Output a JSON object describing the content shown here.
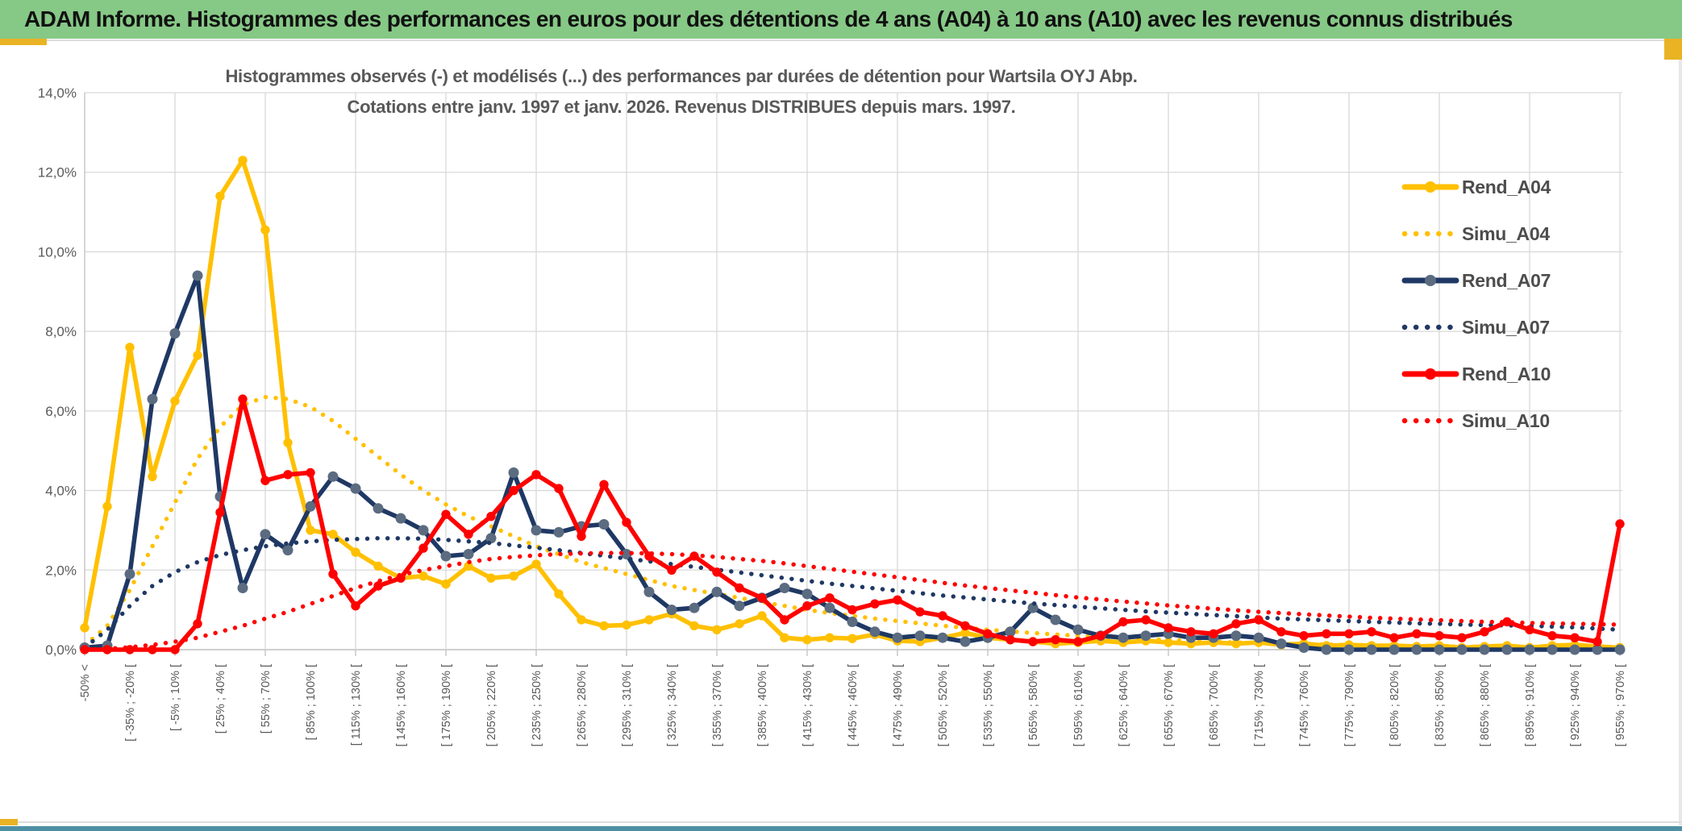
{
  "window": {
    "title": "ADAM Informe. Histogrammes des performances en euros pour des détentions de 4 ans (A04) à 10 ans (A10) avec les revenus connus distribués",
    "colors": {
      "titlebar_green": "#86C886",
      "accent_gold": "#E9B324",
      "accent_teal": "#4F8FA4",
      "rule_gray": "#DCDCDC"
    }
  },
  "chart": {
    "y_axis": {
      "labels": [
        "14,0%",
        "12,0%",
        "10,0%",
        "8,0%",
        "6,0%",
        "4,0%",
        "2,0%",
        "0,0%"
      ],
      "values": [
        14,
        12,
        10,
        8,
        6,
        4,
        2,
        0
      ]
    },
    "colors": {
      "grid": "#D9D9D9",
      "axis": "#BFBFBF",
      "axis_text": "#595959",
      "title_text": "#595959",
      "gold": "#FFC000",
      "navy": "#1F3864",
      "navy_marker": "#5B6B80",
      "red": "#FF0000"
    },
    "legend": [
      "Rend_A04",
      "Simu_A04",
      "Rend_A07",
      "Simu_A07",
      "Rend_A10",
      "Simu_A10"
    ]
  },
  "chart_data": {
    "type": "line",
    "title": "Histogrammes observés (-) et modélisés (...) des performances par durées de détention pour Wartsila OYJ Abp.",
    "subtitle": "Cotations entre janv. 1997 et janv. 2026. Revenus DISTRIBUES depuis mars. 1997.",
    "ylim": [
      0,
      14
    ],
    "y_tick_step": 2,
    "y_tick_format": "percent_fr",
    "grid": true,
    "legend_position": "right",
    "x_bin_width_pct": 15,
    "x_label_every_n_bins": 2,
    "x_labels": [
      "-50% <",
      "[ -35% ; -20% [",
      "[ -5% ; 10% [",
      "[ 25% ; 40% [",
      "[ 55% ; 70% [",
      "[ 85% ; 100% [",
      "[ 115% ; 130% [",
      "[ 145% ; 160% [",
      "[ 175% ; 190% [",
      "[ 205% ; 220% [",
      "[ 235% ; 250% [",
      "[ 265% ; 280% [",
      "[ 295% ; 310% [",
      "[ 325% ; 340% [",
      "[ 355% ; 370% [",
      "[ 385% ; 400% [",
      "[ 415% ; 430% [",
      "[ 445% ; 460% [",
      "[ 475% ; 490% [",
      "[ 505% ; 520% [",
      "[ 535% ; 550% [",
      "[ 565% ; 580% [",
      "[ 595% ; 610% [",
      "[ 625% ; 640% [",
      "[ 655% ; 670% [",
      "[ 685% ; 700% [",
      "[ 715% ; 730% [",
      "[ 745% ; 760% [",
      "[ 775% ; 790% [",
      "[ 805% ; 820% [",
      "[ 835% ; 850% [",
      "[ 865% ; 880% [",
      "[ 895% ; 910% [",
      "[ 925% ; 940% [",
      "[ 955% ; 970% ["
    ],
    "series": [
      {
        "name": "Rend_A04",
        "style": "solid",
        "color": "#FFC000",
        "marker_color": "#FFC000",
        "values": [
          0.55,
          3.6,
          7.6,
          4.35,
          6.25,
          7.4,
          11.4,
          12.3,
          10.55,
          5.2,
          3.0,
          2.9,
          2.45,
          2.1,
          1.8,
          1.85,
          1.65,
          2.1,
          1.8,
          1.85,
          2.15,
          1.4,
          0.75,
          0.6,
          0.62,
          0.75,
          0.9,
          0.6,
          0.5,
          0.65,
          0.85,
          0.3,
          0.25,
          0.3,
          0.28,
          0.38,
          0.22,
          0.2,
          0.3,
          0.42,
          0.3,
          0.25,
          0.2,
          0.15,
          0.18,
          0.22,
          0.18,
          0.22,
          0.18,
          0.15,
          0.18,
          0.15,
          0.18,
          0.12,
          0.15,
          0.1,
          0.12,
          0.1,
          0.1,
          0.08,
          0.1,
          0.05,
          0.08,
          0.1,
          0.05,
          0.1,
          0.12,
          0.08,
          0.05
        ]
      },
      {
        "name": "Simu_A04",
        "style": "dotted",
        "color": "#FFC000",
        "values": [
          0.1,
          0.6,
          1.5,
          2.6,
          3.7,
          4.8,
          5.6,
          6.15,
          6.35,
          6.3,
          6.1,
          5.75,
          5.3,
          4.85,
          4.4,
          4.0,
          3.65,
          3.35,
          3.1,
          2.85,
          2.6,
          2.4,
          2.2,
          2.05,
          1.9,
          1.75,
          1.6,
          1.5,
          1.4,
          1.3,
          1.2,
          1.1,
          1.0,
          0.92,
          0.85,
          0.78,
          0.72,
          0.66,
          0.6,
          0.55,
          0.5,
          0.46,
          0.42,
          0.38,
          0.35,
          0.32,
          0.29,
          0.27,
          0.24,
          0.22,
          0.2,
          0.18,
          0.17,
          0.15,
          0.14,
          0.13,
          0.12,
          0.11,
          0.1,
          0.09,
          0.08,
          0.08,
          0.07,
          0.07,
          0.06,
          0.06,
          0.05,
          0.05,
          0.05
        ]
      },
      {
        "name": "Rend_A07",
        "style": "solid",
        "color": "#1F3864",
        "marker_color": "#5B6B80",
        "values": [
          0.05,
          0.1,
          1.9,
          6.3,
          7.95,
          9.4,
          3.85,
          1.55,
          2.9,
          2.5,
          3.6,
          4.35,
          4.05,
          3.55,
          3.3,
          3.0,
          2.35,
          2.4,
          2.8,
          4.45,
          3.0,
          2.95,
          3.1,
          3.15,
          2.4,
          1.45,
          1.0,
          1.05,
          1.45,
          1.1,
          1.3,
          1.55,
          1.4,
          1.05,
          0.7,
          0.45,
          0.3,
          0.35,
          0.3,
          0.2,
          0.3,
          0.45,
          1.05,
          0.75,
          0.5,
          0.35,
          0.3,
          0.35,
          0.4,
          0.3,
          0.3,
          0.35,
          0.3,
          0.15,
          0.05,
          0,
          0,
          0,
          0,
          0,
          0,
          0,
          0,
          0,
          0,
          0,
          0,
          0,
          0
        ]
      },
      {
        "name": "Simu_A07",
        "style": "dotted",
        "color": "#1F3864",
        "values": [
          0.05,
          0.5,
          1.1,
          1.6,
          1.95,
          2.2,
          2.38,
          2.5,
          2.6,
          2.67,
          2.72,
          2.76,
          2.78,
          2.8,
          2.8,
          2.79,
          2.76,
          2.72,
          2.68,
          2.62,
          2.56,
          2.5,
          2.43,
          2.36,
          2.29,
          2.22,
          2.15,
          2.08,
          2.01,
          1.94,
          1.87,
          1.8,
          1.73,
          1.66,
          1.6,
          1.54,
          1.48,
          1.42,
          1.36,
          1.31,
          1.26,
          1.21,
          1.16,
          1.12,
          1.08,
          1.04,
          1.0,
          0.96,
          0.93,
          0.9,
          0.87,
          0.84,
          0.81,
          0.78,
          0.76,
          0.74,
          0.72,
          0.7,
          0.68,
          0.66,
          0.65,
          0.63,
          0.62,
          0.61,
          0.6,
          0.58,
          0.56,
          0.53,
          0.5
        ]
      },
      {
        "name": "Rend_A10",
        "style": "solid",
        "color": "#FF0000",
        "marker_color": "#FF0000",
        "values": [
          0,
          0,
          0,
          0,
          0,
          0.65,
          3.45,
          6.3,
          4.25,
          4.4,
          4.45,
          1.9,
          1.1,
          1.6,
          1.8,
          2.55,
          3.4,
          2.9,
          3.35,
          4.0,
          4.4,
          4.05,
          2.85,
          4.15,
          3.2,
          2.35,
          2.0,
          2.35,
          1.95,
          1.55,
          1.3,
          0.75,
          1.1,
          1.3,
          1.0,
          1.15,
          1.25,
          0.95,
          0.85,
          0.6,
          0.4,
          0.25,
          0.2,
          0.25,
          0.2,
          0.35,
          0.7,
          0.75,
          0.55,
          0.45,
          0.4,
          0.65,
          0.75,
          0.45,
          0.35,
          0.4,
          0.4,
          0.45,
          0.3,
          0.4,
          0.35,
          0.3,
          0.45,
          0.7,
          0.5,
          0.35,
          0.3,
          0.2,
          3.16
        ]
      },
      {
        "name": "Simu_A10",
        "style": "dotted",
        "color": "#FF0000",
        "values": [
          0,
          0.02,
          0.06,
          0.12,
          0.2,
          0.3,
          0.45,
          0.6,
          0.78,
          0.95,
          1.15,
          1.35,
          1.55,
          1.72,
          1.88,
          2.0,
          2.1,
          2.2,
          2.28,
          2.33,
          2.37,
          2.4,
          2.42,
          2.43,
          2.43,
          2.42,
          2.4,
          2.37,
          2.33,
          2.28,
          2.23,
          2.17,
          2.1,
          2.03,
          1.96,
          1.89,
          1.82,
          1.75,
          1.68,
          1.61,
          1.55,
          1.49,
          1.43,
          1.37,
          1.31,
          1.26,
          1.21,
          1.16,
          1.11,
          1.07,
          1.03,
          0.99,
          0.95,
          0.92,
          0.89,
          0.86,
          0.83,
          0.8,
          0.78,
          0.76,
          0.74,
          0.72,
          0.7,
          0.69,
          0.67,
          0.66,
          0.65,
          0.64,
          0.63
        ]
      }
    ]
  }
}
